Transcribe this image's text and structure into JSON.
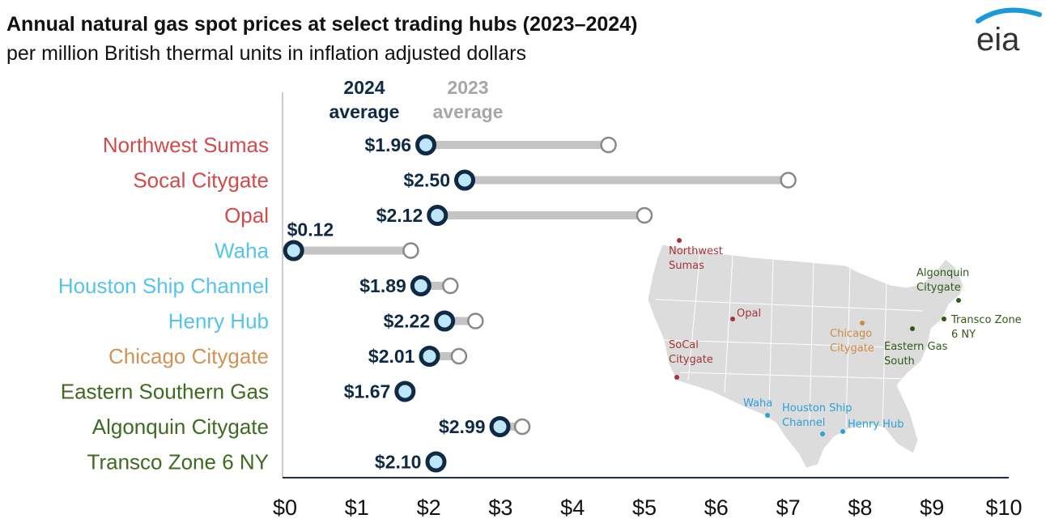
{
  "header": {
    "title": "Annual natural gas spot prices at select trading hubs (2023–2024)",
    "subtitle": "per million British thermal units in inflation adjusted dollars"
  },
  "logo": {
    "text": "eia",
    "color": "#1a9bd7"
  },
  "legend": {
    "y2024": [
      "2024",
      "average"
    ],
    "y2023": [
      "2023",
      "average"
    ]
  },
  "colors": {
    "west": "#d24b4b",
    "texas_gulf": "#55c3ee",
    "midwest": "#d19255",
    "east": "#3d6b1f",
    "dot_2024_fill": "#bfe6f8",
    "dot_2024_stroke": "#0f2a44",
    "dot_2023": "#888888",
    "connector": "#c4c4c4",
    "map_land": "#dcdcdc"
  },
  "chart_data": {
    "type": "dumbbell",
    "xlim": [
      0,
      10
    ],
    "x_ticks": [
      "$0",
      "$1",
      "$2",
      "$3",
      "$4",
      "$5",
      "$6",
      "$7",
      "$8",
      "$9",
      "$10"
    ],
    "series": [
      {
        "name": "2024 average"
      },
      {
        "name": "2023 average"
      }
    ],
    "hubs": [
      {
        "name": "Northwest Sumas",
        "group": "west",
        "v2024": 1.96,
        "v2024_label": "$1.96",
        "v2023": 4.5
      },
      {
        "name": "Socal Citygate",
        "group": "west",
        "v2024": 2.5,
        "v2024_label": "$2.50",
        "v2023": 7.0
      },
      {
        "name": "Opal",
        "group": "west",
        "v2024": 2.12,
        "v2024_label": "$2.12",
        "v2023": 5.0
      },
      {
        "name": "Waha",
        "group": "texas_gulf",
        "v2024": 0.12,
        "v2024_label": "$0.12",
        "v2023": 1.75
      },
      {
        "name": "Houston Ship Channel",
        "group": "texas_gulf",
        "v2024": 1.89,
        "v2024_label": "$1.89",
        "v2023": 2.3
      },
      {
        "name": "Henry Hub",
        "group": "texas_gulf",
        "v2024": 2.22,
        "v2024_label": "$2.22",
        "v2023": 2.65
      },
      {
        "name": "Chicago Citygate",
        "group": "midwest",
        "v2024": 2.01,
        "v2024_label": "$2.01",
        "v2023": 2.42
      },
      {
        "name": "Eastern Southern Gas",
        "group": "east",
        "v2024": 1.67,
        "v2024_label": "$1.67",
        "v2023": 1.7
      },
      {
        "name": "Algonquin Citygate",
        "group": "east",
        "v2024": 2.99,
        "v2024_label": "$2.99",
        "v2023": 3.3
      },
      {
        "name": "Transco Zone 6 NY",
        "group": "east",
        "v2024": 2.1,
        "v2024_label": "$2.10",
        "v2023": 2.1
      }
    ]
  },
  "map": {
    "labels": [
      {
        "id": "nw-sumas",
        "lines": [
          "Northwest",
          "Sumas"
        ],
        "group": "west"
      },
      {
        "id": "opal",
        "lines": [
          "Opal"
        ],
        "group": "west"
      },
      {
        "id": "socal",
        "lines": [
          "SoCal",
          "Citygate"
        ],
        "group": "west"
      },
      {
        "id": "waha",
        "lines": [
          "Waha"
        ],
        "group": "texas_gulf"
      },
      {
        "id": "houston",
        "lines": [
          "Houston Ship",
          "Channel"
        ],
        "group": "texas_gulf"
      },
      {
        "id": "henry",
        "lines": [
          "Henry Hub"
        ],
        "group": "texas_gulf"
      },
      {
        "id": "chicago",
        "lines": [
          "Chicago",
          "Citygate"
        ],
        "group": "midwest"
      },
      {
        "id": "eastern",
        "lines": [
          "Eastern Gas",
          "South"
        ],
        "group": "east"
      },
      {
        "id": "algonquin",
        "lines": [
          "Algonquin",
          "Citygate"
        ],
        "group": "east"
      },
      {
        "id": "transco",
        "lines": [
          "Transco Zone",
          "6 NY"
        ],
        "group": "east"
      }
    ]
  }
}
